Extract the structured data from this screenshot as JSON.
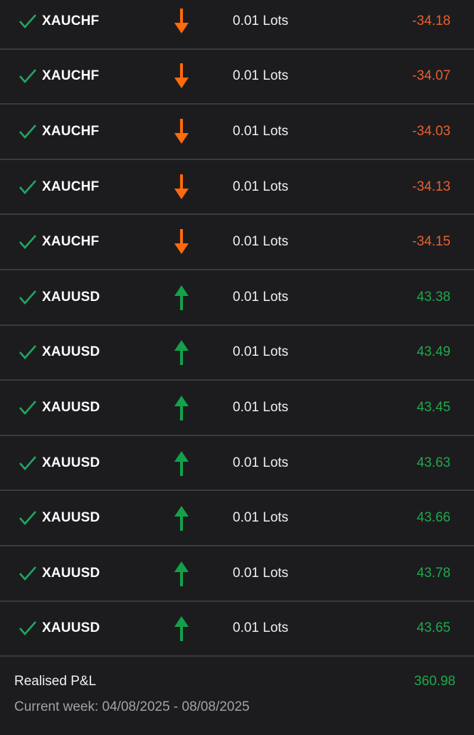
{
  "colors": {
    "loss": "#e8602c",
    "profit": "#1fa84a",
    "sell_arrow": "#ff6a0d",
    "buy_arrow": "#12a24a",
    "check": "#1fa860"
  },
  "trades": [
    {
      "symbol": "XAUCHF",
      "direction": "sell",
      "icon": "arrow-down-icon",
      "volume": "0.01 Lots",
      "pnl": "-34.18"
    },
    {
      "symbol": "XAUCHF",
      "direction": "sell",
      "icon": "arrow-down-icon",
      "volume": "0.01 Lots",
      "pnl": "-34.07"
    },
    {
      "symbol": "XAUCHF",
      "direction": "sell",
      "icon": "arrow-down-icon",
      "volume": "0.01 Lots",
      "pnl": "-34.03"
    },
    {
      "symbol": "XAUCHF",
      "direction": "sell",
      "icon": "arrow-down-icon",
      "volume": "0.01 Lots",
      "pnl": "-34.13"
    },
    {
      "symbol": "XAUCHF",
      "direction": "sell",
      "icon": "arrow-down-icon",
      "volume": "0.01 Lots",
      "pnl": "-34.15"
    },
    {
      "symbol": "XAUUSD",
      "direction": "buy",
      "icon": "arrow-up-icon",
      "volume": "0.01 Lots",
      "pnl": "43.38"
    },
    {
      "symbol": "XAUUSD",
      "direction": "buy",
      "icon": "arrow-up-icon",
      "volume": "0.01 Lots",
      "pnl": "43.49"
    },
    {
      "symbol": "XAUUSD",
      "direction": "buy",
      "icon": "arrow-up-icon",
      "volume": "0.01 Lots",
      "pnl": "43.45"
    },
    {
      "symbol": "XAUUSD",
      "direction": "buy",
      "icon": "arrow-up-icon",
      "volume": "0.01 Lots",
      "pnl": "43.63"
    },
    {
      "symbol": "XAUUSD",
      "direction": "buy",
      "icon": "arrow-up-icon",
      "volume": "0.01 Lots",
      "pnl": "43.66"
    },
    {
      "symbol": "XAUUSD",
      "direction": "buy",
      "icon": "arrow-up-icon",
      "volume": "0.01 Lots",
      "pnl": "43.78"
    },
    {
      "symbol": "XAUUSD",
      "direction": "buy",
      "icon": "arrow-up-icon",
      "volume": "0.01 Lots",
      "pnl": "43.65"
    }
  ],
  "summary": {
    "label": "Realised P&L",
    "value": "360.98",
    "period": "Current week: 04/08/2025 - 08/08/2025"
  }
}
